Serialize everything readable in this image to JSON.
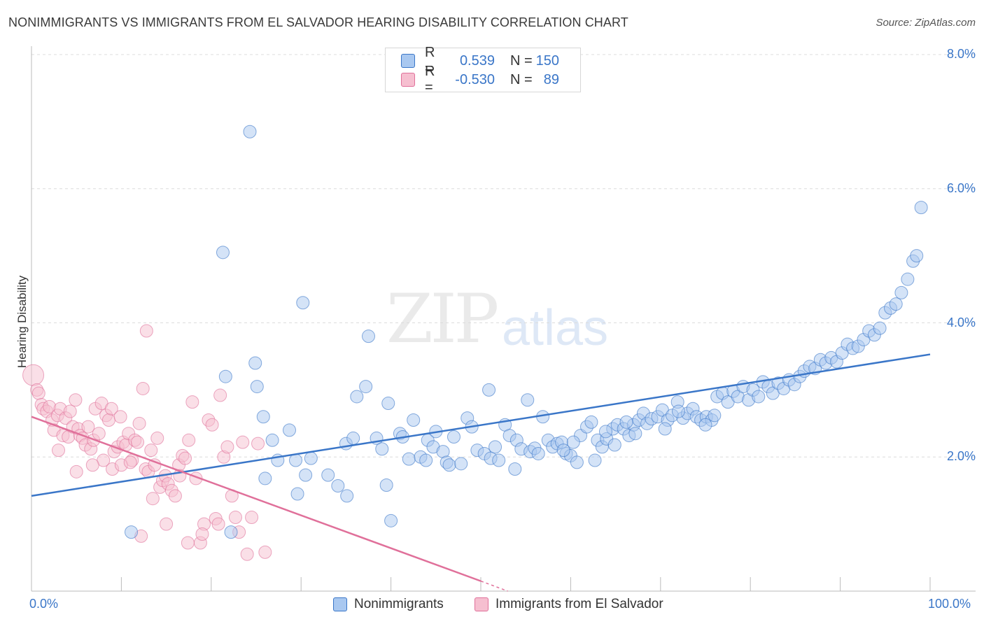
{
  "title": "NONIMMIGRANTS VS IMMIGRANTS FROM EL SALVADOR HEARING DISABILITY CORRELATION CHART",
  "source": "Source: ZipAtlas.com",
  "watermark": {
    "zip": "ZIP",
    "atlas": "atlas"
  },
  "legend": {
    "series1": {
      "r_label": "R =",
      "r_value": "0.539",
      "n_label": "N =",
      "n_value": "150"
    },
    "series2": {
      "r_label": "R =",
      "r_value": "-0.530",
      "n_label": "N =",
      "n_value": "89"
    }
  },
  "bottom_legend": {
    "series1": "Nonimmigrants",
    "series2": "Immigrants from El Salvador"
  },
  "x_tick_labels": {
    "min": "0.0%",
    "max": "100.0%"
  },
  "y_tick_labels": [
    "2.0%",
    "4.0%",
    "6.0%",
    "8.0%"
  ],
  "colors": {
    "blue": "#3a76c8",
    "blue_fill": "#a9c8f0",
    "pink": "#e0709a",
    "pink_fill": "#f6bfd0",
    "grid": "#dcdcdc"
  },
  "chart_data": {
    "type": "scatter",
    "title": "NONIMMIGRANTS VS IMMIGRANTS FROM EL SALVADOR HEARING DISABILITY CORRELATION CHART",
    "xlabel": "",
    "ylabel": "Hearing Disability",
    "xlim": [
      0,
      100
    ],
    "ylim": [
      0,
      8.0
    ],
    "grid": true,
    "series": [
      {
        "name": "Nonimmigrants",
        "trend": [
          [
            0,
            1.42
          ],
          [
            100,
            3.53
          ]
        ],
        "points": [
          [
            24.3,
            6.85
          ],
          [
            21.3,
            5.05
          ],
          [
            30.2,
            4.3
          ],
          [
            37.5,
            3.8
          ],
          [
            24.9,
            3.4
          ],
          [
            21.6,
            3.2
          ],
          [
            25.1,
            3.05
          ],
          [
            37.2,
            3.05
          ],
          [
            36.2,
            2.9
          ],
          [
            39.7,
            2.8
          ],
          [
            25.8,
            2.6
          ],
          [
            28.7,
            2.4
          ],
          [
            26.8,
            2.25
          ],
          [
            27.4,
            1.95
          ],
          [
            29.4,
            1.95
          ],
          [
            31.1,
            1.98
          ],
          [
            33.0,
            1.73
          ],
          [
            34.1,
            1.57
          ],
          [
            35.1,
            1.42
          ],
          [
            30.5,
            1.73
          ],
          [
            26.0,
            1.68
          ],
          [
            29.6,
            1.45
          ],
          [
            39.5,
            1.58
          ],
          [
            40.0,
            1.05
          ],
          [
            22.2,
            0.88
          ],
          [
            11.1,
            0.88
          ],
          [
            35.0,
            2.2
          ],
          [
            35.8,
            2.28
          ],
          [
            38.4,
            2.28
          ],
          [
            39.0,
            2.12
          ],
          [
            41.0,
            2.35
          ],
          [
            41.3,
            2.3
          ],
          [
            42.0,
            1.97
          ],
          [
            42.5,
            2.55
          ],
          [
            43.3,
            2.0
          ],
          [
            43.9,
            1.95
          ],
          [
            44.1,
            2.25
          ],
          [
            44.7,
            2.15
          ],
          [
            45.0,
            2.38
          ],
          [
            45.8,
            2.08
          ],
          [
            46.2,
            1.92
          ],
          [
            46.5,
            1.88
          ],
          [
            47.0,
            2.3
          ],
          [
            47.8,
            1.9
          ],
          [
            48.5,
            2.58
          ],
          [
            49.0,
            2.45
          ],
          [
            49.6,
            2.1
          ],
          [
            50.4,
            2.05
          ],
          [
            50.9,
            3.0
          ],
          [
            51.1,
            1.98
          ],
          [
            51.6,
            2.15
          ],
          [
            52.0,
            1.95
          ],
          [
            52.7,
            2.48
          ],
          [
            53.2,
            2.32
          ],
          [
            54.0,
            2.25
          ],
          [
            54.5,
            2.12
          ],
          [
            55.2,
            2.85
          ],
          [
            55.5,
            2.08
          ],
          [
            56.0,
            2.13
          ],
          [
            56.4,
            2.05
          ],
          [
            56.9,
            2.6
          ],
          [
            57.5,
            2.25
          ],
          [
            58.0,
            2.15
          ],
          [
            58.5,
            2.2
          ],
          [
            59.0,
            2.22
          ],
          [
            59.5,
            2.05
          ],
          [
            60.0,
            2.02
          ],
          [
            60.7,
            1.92
          ],
          [
            61.1,
            2.32
          ],
          [
            61.8,
            2.45
          ],
          [
            62.3,
            2.52
          ],
          [
            63.0,
            2.25
          ],
          [
            63.5,
            2.15
          ],
          [
            64.0,
            2.27
          ],
          [
            64.7,
            2.42
          ],
          [
            65.2,
            2.48
          ],
          [
            65.9,
            2.42
          ],
          [
            66.5,
            2.32
          ],
          [
            67.0,
            2.48
          ],
          [
            67.6,
            2.55
          ],
          [
            68.1,
            2.65
          ],
          [
            68.5,
            2.5
          ],
          [
            69.0,
            2.57
          ],
          [
            69.7,
            2.6
          ],
          [
            70.2,
            2.7
          ],
          [
            70.8,
            2.55
          ],
          [
            71.3,
            2.62
          ],
          [
            71.9,
            2.82
          ],
          [
            72.5,
            2.58
          ],
          [
            73.0,
            2.65
          ],
          [
            73.6,
            2.72
          ],
          [
            74.0,
            2.6
          ],
          [
            74.5,
            2.55
          ],
          [
            75.1,
            2.6
          ],
          [
            75.7,
            2.55
          ],
          [
            76.3,
            2.9
          ],
          [
            76.9,
            2.95
          ],
          [
            77.5,
            2.82
          ],
          [
            78.1,
            2.98
          ],
          [
            78.6,
            2.9
          ],
          [
            79.2,
            3.05
          ],
          [
            79.8,
            2.85
          ],
          [
            80.3,
            3.0
          ],
          [
            80.9,
            2.9
          ],
          [
            81.4,
            3.12
          ],
          [
            82.0,
            3.05
          ],
          [
            82.5,
            2.95
          ],
          [
            83.1,
            3.1
          ],
          [
            83.7,
            3.02
          ],
          [
            84.3,
            3.15
          ],
          [
            84.9,
            3.08
          ],
          [
            85.5,
            3.2
          ],
          [
            86.0,
            3.28
          ],
          [
            86.6,
            3.35
          ],
          [
            87.2,
            3.32
          ],
          [
            87.8,
            3.45
          ],
          [
            88.4,
            3.4
          ],
          [
            89.0,
            3.48
          ],
          [
            89.6,
            3.42
          ],
          [
            90.2,
            3.55
          ],
          [
            90.8,
            3.68
          ],
          [
            91.4,
            3.62
          ],
          [
            92.0,
            3.65
          ],
          [
            92.6,
            3.75
          ],
          [
            93.2,
            3.88
          ],
          [
            93.8,
            3.82
          ],
          [
            94.4,
            3.92
          ],
          [
            95.0,
            4.15
          ],
          [
            95.6,
            4.22
          ],
          [
            96.2,
            4.28
          ],
          [
            96.8,
            4.45
          ],
          [
            97.5,
            4.65
          ],
          [
            98.1,
            4.92
          ],
          [
            98.5,
            5.0
          ],
          [
            99.0,
            5.72
          ],
          [
            60.3,
            2.22
          ],
          [
            62.7,
            1.95
          ],
          [
            53.8,
            1.82
          ],
          [
            66.2,
            2.52
          ],
          [
            72.0,
            2.68
          ],
          [
            59.2,
            2.1
          ],
          [
            63.9,
            2.38
          ],
          [
            64.9,
            2.18
          ],
          [
            70.5,
            2.42
          ],
          [
            76.0,
            2.62
          ],
          [
            67.2,
            2.35
          ],
          [
            75.0,
            2.48
          ]
        ]
      },
      {
        "name": "Immigrants from El Salvador",
        "trend": [
          [
            0,
            2.6
          ],
          [
            50,
            0.15
          ]
        ],
        "trend_dashed": [
          [
            50,
            0.15
          ],
          [
            53,
            0.0
          ]
        ],
        "points": [
          [
            0.2,
            3.22
          ],
          [
            0.6,
            3.0
          ],
          [
            0.8,
            2.95
          ],
          [
            1.1,
            2.78
          ],
          [
            1.3,
            2.72
          ],
          [
            1.7,
            2.68
          ],
          [
            2.0,
            2.75
          ],
          [
            2.3,
            2.55
          ],
          [
            2.5,
            2.4
          ],
          [
            2.9,
            2.62
          ],
          [
            3.2,
            2.72
          ],
          [
            3.5,
            2.32
          ],
          [
            3.8,
            2.58
          ],
          [
            4.1,
            2.3
          ],
          [
            4.3,
            2.68
          ],
          [
            4.6,
            2.45
          ],
          [
            4.9,
            2.85
          ],
          [
            5.2,
            2.42
          ],
          [
            5.4,
            2.32
          ],
          [
            5.7,
            2.28
          ],
          [
            6.0,
            2.18
          ],
          [
            6.3,
            2.45
          ],
          [
            6.6,
            2.12
          ],
          [
            6.9,
            2.25
          ],
          [
            7.1,
            2.72
          ],
          [
            7.5,
            2.35
          ],
          [
            7.8,
            2.8
          ],
          [
            8.0,
            1.95
          ],
          [
            8.3,
            2.62
          ],
          [
            8.6,
            2.55
          ],
          [
            8.9,
            2.72
          ],
          [
            9.2,
            2.08
          ],
          [
            9.6,
            2.15
          ],
          [
            9.9,
            2.6
          ],
          [
            10.2,
            2.22
          ],
          [
            10.5,
            2.18
          ],
          [
            10.8,
            2.35
          ],
          [
            11.2,
            1.95
          ],
          [
            11.5,
            2.25
          ],
          [
            11.8,
            2.22
          ],
          [
            12.0,
            2.5
          ],
          [
            12.4,
            3.02
          ],
          [
            12.7,
            1.82
          ],
          [
            13.0,
            1.78
          ],
          [
            13.3,
            2.1
          ],
          [
            13.7,
            1.88
          ],
          [
            14.0,
            2.28
          ],
          [
            14.3,
            1.55
          ],
          [
            14.6,
            1.65
          ],
          [
            14.9,
            1.72
          ],
          [
            15.2,
            1.6
          ],
          [
            15.6,
            1.5
          ],
          [
            16.0,
            1.42
          ],
          [
            16.4,
            1.88
          ],
          [
            16.8,
            2.02
          ],
          [
            17.1,
            1.98
          ],
          [
            17.5,
            2.25
          ],
          [
            17.9,
            2.82
          ],
          [
            18.3,
            1.68
          ],
          [
            18.8,
            0.72
          ],
          [
            19.2,
            1.0
          ],
          [
            19.7,
            2.55
          ],
          [
            20.1,
            2.48
          ],
          [
            20.5,
            1.08
          ],
          [
            21.0,
            2.92
          ],
          [
            21.4,
            2.0
          ],
          [
            21.8,
            2.15
          ],
          [
            22.3,
            1.42
          ],
          [
            22.7,
            1.1
          ],
          [
            23.1,
            0.88
          ],
          [
            23.5,
            2.22
          ],
          [
            24.0,
            0.55
          ],
          [
            24.5,
            1.1
          ],
          [
            25.2,
            2.2
          ],
          [
            26.0,
            0.58
          ],
          [
            3.0,
            2.1
          ],
          [
            5.0,
            1.78
          ],
          [
            6.8,
            1.88
          ],
          [
            9.0,
            1.82
          ],
          [
            10.0,
            1.88
          ],
          [
            11.0,
            1.92
          ],
          [
            12.2,
            0.82
          ],
          [
            13.5,
            1.38
          ],
          [
            15.0,
            1.0
          ],
          [
            16.5,
            1.72
          ],
          [
            17.4,
            0.72
          ],
          [
            19.0,
            0.85
          ],
          [
            20.8,
            1.0
          ],
          [
            12.8,
            3.88
          ]
        ]
      }
    ]
  }
}
